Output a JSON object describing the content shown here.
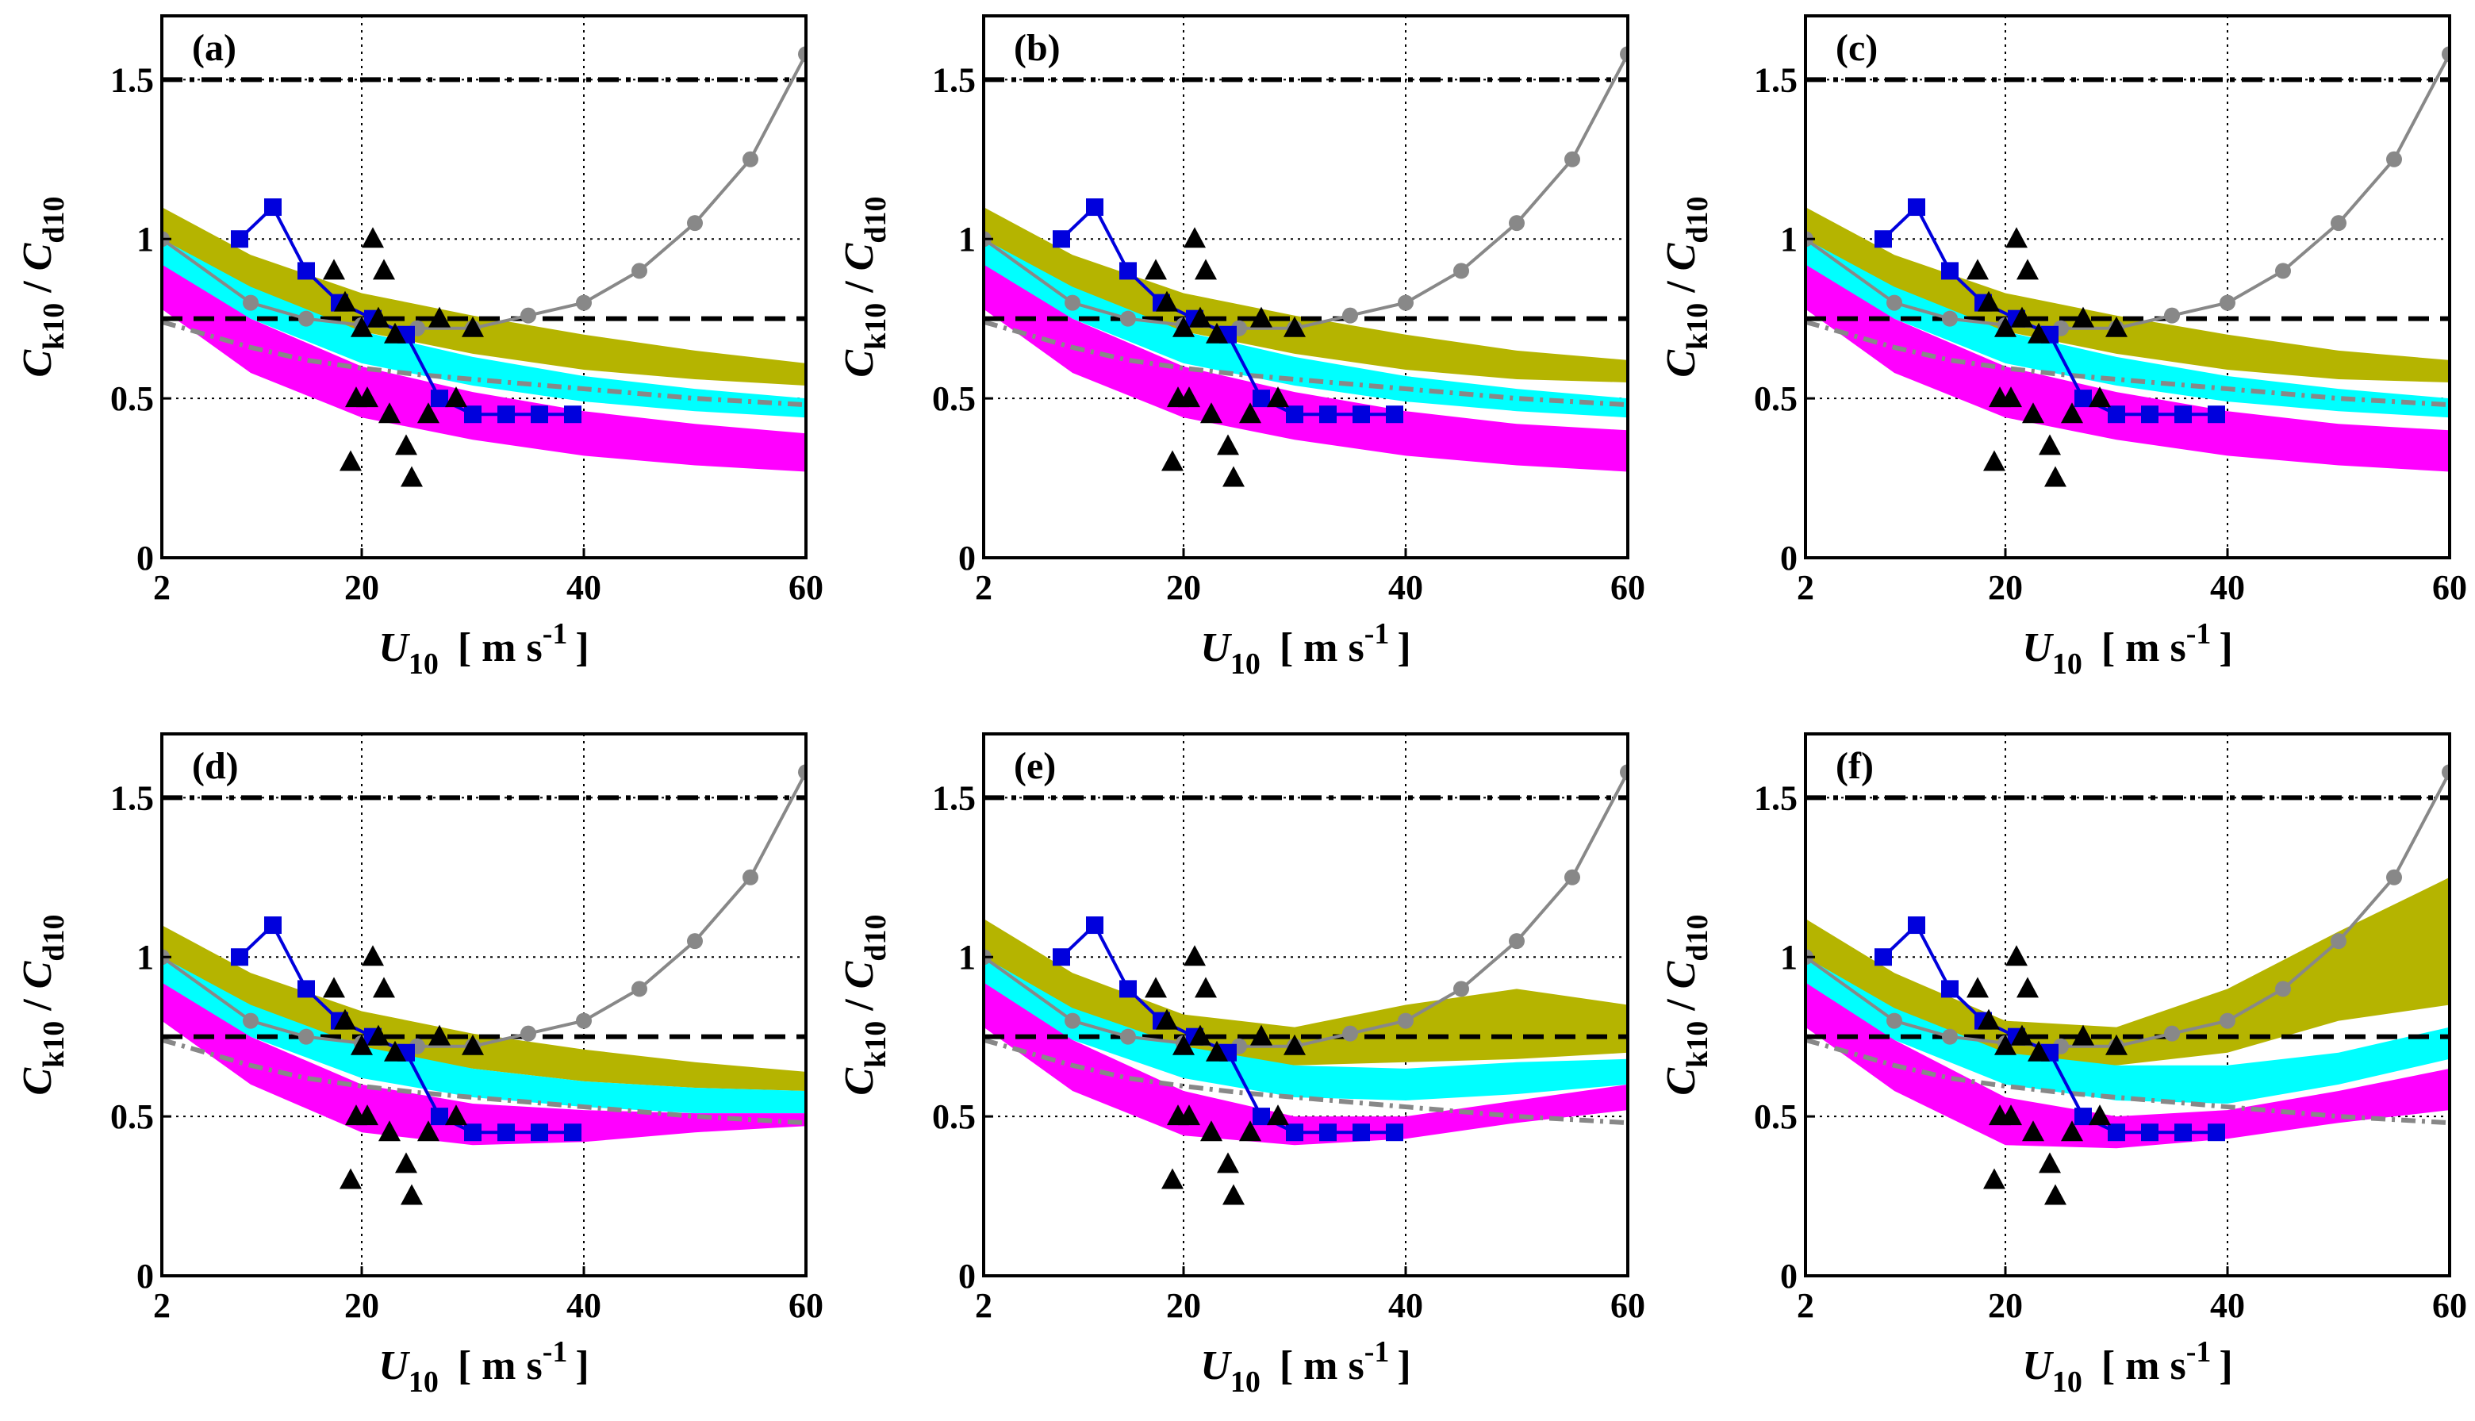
{
  "chart_data": {
    "type": "line",
    "layout": "2x3 panel grid",
    "shared": {
      "xlim": [
        2,
        60
      ],
      "ylim": [
        0,
        1.7
      ],
      "xticks": [
        "2",
        "20",
        "40",
        "60"
      ],
      "xtick_values": [
        2,
        20,
        40,
        60
      ],
      "yticks": [
        "0",
        "0.5",
        "1",
        "1.5"
      ],
      "ytick_values": [
        0,
        0.5,
        1,
        1.5
      ],
      "grid": "dotted, on",
      "xlabel": {
        "main": "U",
        "sub": "10",
        "unit": "[ m s",
        "sup": "-1",
        "close": "]"
      },
      "ylabel": {
        "c1": "C",
        "s1": "k10",
        "slash": " / ",
        "c2": "C",
        "s2": "d10"
      },
      "colors": {
        "band_upper": "#b5b400",
        "band_middle": "#00ffff",
        "band_lower": "#ff00ff",
        "gray_series": "#888888",
        "blue_series": "#0000dd",
        "triangles": "#000000",
        "reference_lines": "#000000"
      },
      "reference_lines": [
        {
          "y": 1.5,
          "style": "dash-dot"
        },
        {
          "y": 0.75,
          "style": "dashed"
        }
      ],
      "gray_dotted_curve": {
        "x": [
          2,
          5,
          10,
          15,
          20,
          25,
          30,
          35,
          40,
          45,
          50,
          55,
          60
        ],
        "y": [
          0.74,
          0.71,
          0.66,
          0.62,
          0.595,
          0.575,
          0.56,
          0.545,
          0.53,
          0.515,
          0.5,
          0.49,
          0.48
        ]
      },
      "gray_series": {
        "x": [
          2,
          10,
          15,
          20,
          25,
          30,
          35,
          40,
          45,
          50,
          55,
          60
        ],
        "y": [
          1.0,
          0.8,
          0.75,
          0.73,
          0.72,
          0.72,
          0.76,
          0.8,
          0.9,
          1.05,
          1.25,
          1.58
        ]
      },
      "blue_series": {
        "x": [
          9,
          12,
          15,
          18,
          21,
          24,
          27,
          30,
          33,
          36,
          39
        ],
        "y": [
          1.0,
          1.1,
          0.9,
          0.8,
          0.75,
          0.7,
          0.5,
          0.45,
          0.45,
          0.45,
          0.45
        ]
      },
      "triangles": {
        "x": [
          17.5,
          18.5,
          19,
          19.5,
          20,
          20.5,
          21,
          21.5,
          22,
          22.5,
          23,
          24,
          24.5,
          26,
          27,
          28.5,
          30
        ],
        "y": [
          0.9,
          0.8,
          0.3,
          0.5,
          0.72,
          0.5,
          1.0,
          0.75,
          0.9,
          0.45,
          0.7,
          0.35,
          0.25,
          0.45,
          0.75,
          0.5,
          0.72
        ]
      }
    },
    "panels": [
      {
        "label": "(a)",
        "bands": [
          {
            "x": [
              2,
              10,
              20,
              30,
              40,
              50,
              60
            ],
            "upper": [
              1.1,
              0.95,
              0.83,
              0.76,
              0.7,
              0.65,
              0.61
            ],
            "lower": [
              0.98,
              0.83,
              0.71,
              0.64,
              0.59,
              0.56,
              0.54
            ]
          },
          {
            "x": [
              2,
              10,
              20,
              30,
              40,
              50,
              60
            ],
            "upper": [
              1.0,
              0.85,
              0.71,
              0.63,
              0.57,
              0.53,
              0.5
            ],
            "lower": [
              0.9,
              0.75,
              0.61,
              0.54,
              0.49,
              0.46,
              0.44
            ]
          },
          {
            "x": [
              2,
              10,
              20,
              30,
              40,
              50,
              60
            ],
            "upper": [
              0.92,
              0.75,
              0.6,
              0.52,
              0.46,
              0.42,
              0.39
            ],
            "lower": [
              0.78,
              0.58,
              0.44,
              0.37,
              0.32,
              0.29,
              0.27
            ]
          }
        ]
      },
      {
        "label": "(b)",
        "bands": [
          {
            "x": [
              2,
              10,
              20,
              30,
              40,
              50,
              60
            ],
            "upper": [
              1.1,
              0.95,
              0.83,
              0.76,
              0.7,
              0.65,
              0.62
            ],
            "lower": [
              0.98,
              0.83,
              0.71,
              0.64,
              0.59,
              0.56,
              0.55
            ]
          },
          {
            "x": [
              2,
              10,
              20,
              30,
              40,
              50,
              60
            ],
            "upper": [
              1.0,
              0.85,
              0.71,
              0.63,
              0.57,
              0.53,
              0.5
            ],
            "lower": [
              0.9,
              0.75,
              0.61,
              0.54,
              0.49,
              0.46,
              0.44
            ]
          },
          {
            "x": [
              2,
              10,
              20,
              30,
              40,
              50,
              60
            ],
            "upper": [
              0.92,
              0.75,
              0.6,
              0.52,
              0.46,
              0.42,
              0.4
            ],
            "lower": [
              0.78,
              0.58,
              0.44,
              0.37,
              0.32,
              0.29,
              0.27
            ]
          }
        ]
      },
      {
        "label": "(c)",
        "bands": [
          {
            "x": [
              2,
              10,
              20,
              30,
              40,
              50,
              60
            ],
            "upper": [
              1.1,
              0.95,
              0.83,
              0.76,
              0.7,
              0.65,
              0.62
            ],
            "lower": [
              0.98,
              0.83,
              0.71,
              0.64,
              0.59,
              0.56,
              0.55
            ]
          },
          {
            "x": [
              2,
              10,
              20,
              30,
              40,
              50,
              60
            ],
            "upper": [
              1.0,
              0.85,
              0.71,
              0.63,
              0.57,
              0.53,
              0.5
            ],
            "lower": [
              0.9,
              0.75,
              0.61,
              0.54,
              0.49,
              0.46,
              0.44
            ]
          },
          {
            "x": [
              2,
              10,
              20,
              30,
              40,
              50,
              60
            ],
            "upper": [
              0.92,
              0.75,
              0.6,
              0.52,
              0.46,
              0.42,
              0.4
            ],
            "lower": [
              0.78,
              0.58,
              0.44,
              0.37,
              0.32,
              0.29,
              0.27
            ]
          }
        ]
      },
      {
        "label": "(d)",
        "bands": [
          {
            "x": [
              2,
              10,
              20,
              30,
              40,
              50,
              60
            ],
            "upper": [
              1.1,
              0.95,
              0.83,
              0.76,
              0.71,
              0.67,
              0.64
            ],
            "lower": [
              0.98,
              0.83,
              0.71,
              0.65,
              0.61,
              0.59,
              0.58
            ]
          },
          {
            "x": [
              2,
              10,
              20,
              30,
              40,
              50,
              60
            ],
            "upper": [
              1.0,
              0.85,
              0.72,
              0.65,
              0.61,
              0.59,
              0.58
            ],
            "lower": [
              0.9,
              0.75,
              0.62,
              0.56,
              0.53,
              0.51,
              0.51
            ]
          },
          {
            "x": [
              2,
              10,
              20,
              30,
              40,
              50,
              60
            ],
            "upper": [
              0.92,
              0.75,
              0.6,
              0.54,
              0.52,
              0.51,
              0.51
            ],
            "lower": [
              0.8,
              0.6,
              0.45,
              0.41,
              0.42,
              0.45,
              0.47
            ]
          }
        ]
      },
      {
        "label": "(e)",
        "bands": [
          {
            "x": [
              2,
              10,
              20,
              30,
              40,
              50,
              60
            ],
            "upper": [
              1.12,
              0.95,
              0.82,
              0.78,
              0.85,
              0.9,
              0.85
            ],
            "lower": [
              0.98,
              0.82,
              0.7,
              0.66,
              0.67,
              0.68,
              0.7
            ]
          },
          {
            "x": [
              2,
              10,
              20,
              30,
              40,
              50,
              60
            ],
            "upper": [
              1.0,
              0.84,
              0.72,
              0.66,
              0.65,
              0.67,
              0.68
            ],
            "lower": [
              0.9,
              0.74,
              0.62,
              0.56,
              0.55,
              0.57,
              0.6
            ]
          },
          {
            "x": [
              2,
              10,
              20,
              30,
              40,
              50,
              60
            ],
            "upper": [
              0.92,
              0.74,
              0.58,
              0.5,
              0.5,
              0.55,
              0.6
            ],
            "lower": [
              0.78,
              0.58,
              0.44,
              0.41,
              0.43,
              0.48,
              0.52
            ]
          }
        ]
      },
      {
        "label": "(f)",
        "bands": [
          {
            "x": [
              2,
              10,
              20,
              30,
              40,
              50,
              60
            ],
            "upper": [
              1.12,
              0.95,
              0.8,
              0.78,
              0.9,
              1.08,
              1.25
            ],
            "lower": [
              0.98,
              0.82,
              0.68,
              0.66,
              0.7,
              0.8,
              0.85
            ]
          },
          {
            "x": [
              2,
              10,
              20,
              30,
              40,
              50,
              60
            ],
            "upper": [
              1.0,
              0.84,
              0.7,
              0.66,
              0.66,
              0.7,
              0.78
            ],
            "lower": [
              0.9,
              0.74,
              0.6,
              0.55,
              0.54,
              0.6,
              0.68
            ]
          },
          {
            "x": [
              2,
              10,
              20,
              30,
              40,
              50,
              60
            ],
            "upper": [
              0.92,
              0.74,
              0.56,
              0.5,
              0.52,
              0.58,
              0.65
            ],
            "lower": [
              0.78,
              0.58,
              0.41,
              0.4,
              0.43,
              0.48,
              0.52
            ]
          }
        ]
      }
    ]
  }
}
